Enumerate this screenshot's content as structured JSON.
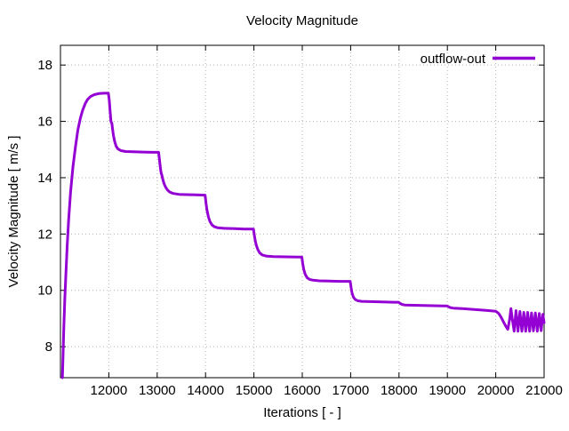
{
  "window": {
    "background": "#ffffff"
  },
  "chart_data": {
    "type": "line",
    "title": "Velocity Magnitude",
    "xlabel": "Iterations [ - ]",
    "ylabel": "Velocity Magnitude [ m/s ]",
    "xlim": [
      11000,
      21000
    ],
    "ylim": [
      6.9,
      18.7
    ],
    "xticks": [
      12000,
      13000,
      14000,
      15000,
      16000,
      17000,
      18000,
      19000,
      20000,
      21000
    ],
    "yticks": [
      8,
      10,
      12,
      14,
      16,
      18
    ],
    "grid": true,
    "grid_style": "dotted",
    "grid_color": "#b5b5b5",
    "border_color": "#000000",
    "legend_position": "top-right-inside",
    "series": [
      {
        "name": "outflow-out",
        "color": "#9400d3",
        "line_width": 3,
        "points": [
          [
            11040,
            6.9
          ],
          [
            11055,
            7.8
          ],
          [
            11070,
            8.7
          ],
          [
            11090,
            9.7
          ],
          [
            11110,
            10.5
          ],
          [
            11140,
            11.6
          ],
          [
            11170,
            12.5
          ],
          [
            11210,
            13.5
          ],
          [
            11260,
            14.4
          ],
          [
            11310,
            15.1
          ],
          [
            11360,
            15.7
          ],
          [
            11410,
            16.1
          ],
          [
            11460,
            16.4
          ],
          [
            11510,
            16.62
          ],
          [
            11560,
            16.78
          ],
          [
            11620,
            16.88
          ],
          [
            11700,
            16.95
          ],
          [
            11800,
            16.99
          ],
          [
            11900,
            17.0
          ],
          [
            11990,
            17.0
          ],
          [
            12010,
            16.75
          ],
          [
            12030,
            16.3
          ],
          [
            12045,
            16.0
          ],
          [
            12065,
            15.92
          ],
          [
            12075,
            15.75
          ],
          [
            12095,
            15.5
          ],
          [
            12120,
            15.3
          ],
          [
            12150,
            15.12
          ],
          [
            12190,
            15.02
          ],
          [
            12250,
            14.96
          ],
          [
            12350,
            14.93
          ],
          [
            12500,
            14.92
          ],
          [
            12700,
            14.91
          ],
          [
            12900,
            14.9
          ],
          [
            13030,
            14.9
          ],
          [
            13050,
            14.6
          ],
          [
            13070,
            14.3
          ],
          [
            13085,
            14.15
          ],
          [
            13095,
            14.1
          ],
          [
            13110,
            13.98
          ],
          [
            13140,
            13.8
          ],
          [
            13170,
            13.68
          ],
          [
            13210,
            13.57
          ],
          [
            13260,
            13.49
          ],
          [
            13330,
            13.44
          ],
          [
            13450,
            13.41
          ],
          [
            13600,
            13.4
          ],
          [
            13800,
            13.39
          ],
          [
            13990,
            13.38
          ],
          [
            14010,
            13.1
          ],
          [
            14030,
            12.85
          ],
          [
            14060,
            12.6
          ],
          [
            14090,
            12.45
          ],
          [
            14130,
            12.33
          ],
          [
            14180,
            12.26
          ],
          [
            14260,
            12.22
          ],
          [
            14400,
            12.2
          ],
          [
            14600,
            12.19
          ],
          [
            14800,
            12.18
          ],
          [
            14990,
            12.18
          ],
          [
            15010,
            11.95
          ],
          [
            15030,
            11.75
          ],
          [
            15050,
            11.6
          ],
          [
            15080,
            11.45
          ],
          [
            15120,
            11.33
          ],
          [
            15170,
            11.26
          ],
          [
            15250,
            11.22
          ],
          [
            15400,
            11.2
          ],
          [
            15650,
            11.19
          ],
          [
            15900,
            11.18
          ],
          [
            15990,
            11.18
          ],
          [
            16010,
            10.95
          ],
          [
            16030,
            10.75
          ],
          [
            16060,
            10.57
          ],
          [
            16100,
            10.45
          ],
          [
            16150,
            10.39
          ],
          [
            16220,
            10.36
          ],
          [
            16350,
            10.34
          ],
          [
            16550,
            10.33
          ],
          [
            16800,
            10.32
          ],
          [
            16990,
            10.32
          ],
          [
            17010,
            10.1
          ],
          [
            17030,
            9.9
          ],
          [
            17060,
            9.75
          ],
          [
            17100,
            9.67
          ],
          [
            17150,
            9.63
          ],
          [
            17230,
            9.61
          ],
          [
            17400,
            9.6
          ],
          [
            17650,
            9.59
          ],
          [
            17900,
            9.58
          ],
          [
            17990,
            9.58
          ],
          [
            18020,
            9.54
          ],
          [
            18060,
            9.5
          ],
          [
            18120,
            9.48
          ],
          [
            18300,
            9.47
          ],
          [
            18600,
            9.46
          ],
          [
            18900,
            9.45
          ],
          [
            18990,
            9.45
          ],
          [
            19020,
            9.42
          ],
          [
            19060,
            9.39
          ],
          [
            19120,
            9.37
          ],
          [
            19300,
            9.35
          ],
          [
            19550,
            9.32
          ],
          [
            19800,
            9.29
          ],
          [
            20000,
            9.26
          ],
          [
            20060,
            9.18
          ],
          [
            20110,
            9.05
          ],
          [
            20160,
            8.88
          ],
          [
            20210,
            8.72
          ],
          [
            20250,
            8.62
          ],
          [
            20290,
            9.0
          ],
          [
            20315,
            9.35
          ],
          [
            20350,
            8.9
          ],
          [
            20380,
            8.55
          ],
          [
            20420,
            9.28
          ],
          [
            20460,
            8.55
          ],
          [
            20500,
            9.25
          ],
          [
            20540,
            8.55
          ],
          [
            20580,
            9.22
          ],
          [
            20620,
            8.55
          ],
          [
            20660,
            9.22
          ],
          [
            20700,
            8.55
          ],
          [
            20740,
            9.2
          ],
          [
            20780,
            8.56
          ],
          [
            20820,
            9.2
          ],
          [
            20860,
            8.55
          ],
          [
            20900,
            9.18
          ],
          [
            20940,
            8.57
          ],
          [
            20975,
            9.15
          ],
          [
            21000,
            8.85
          ]
        ]
      }
    ]
  }
}
